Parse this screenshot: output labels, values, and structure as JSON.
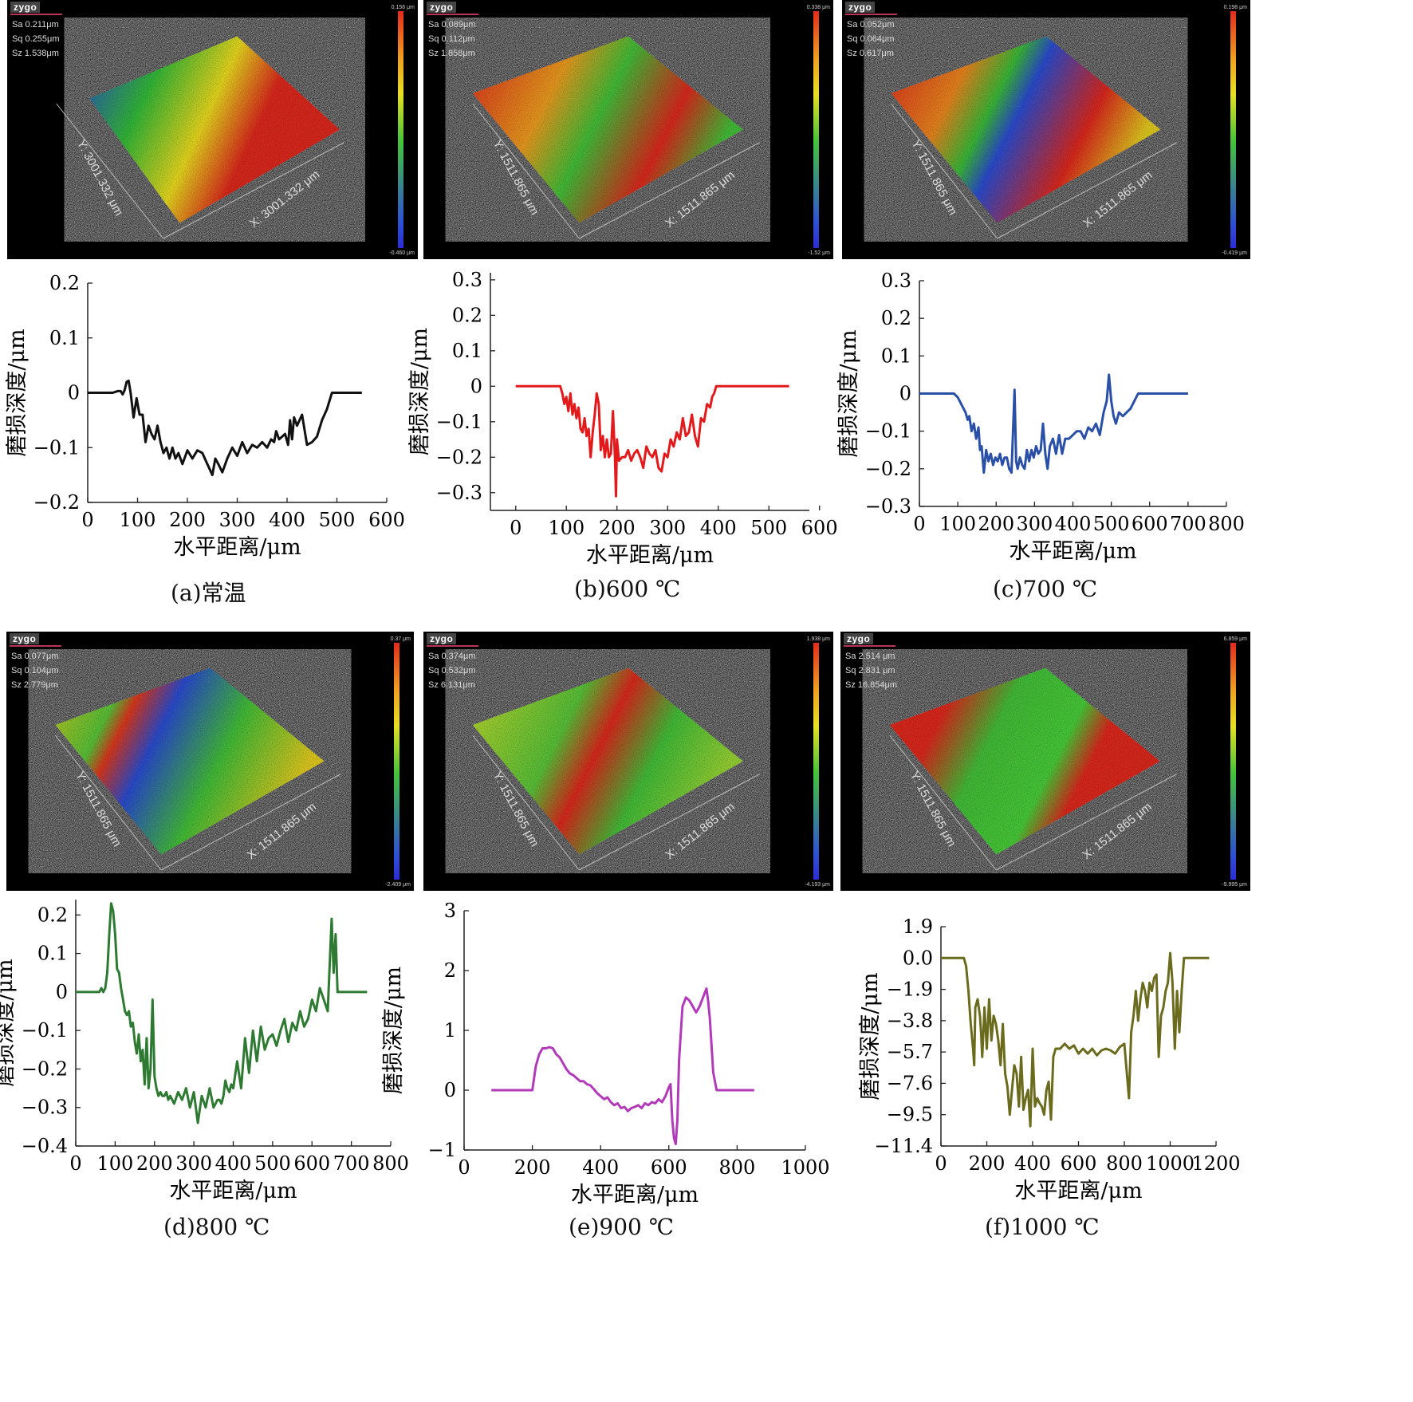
{
  "scans": [
    {
      "brand": "zygo",
      "sa": "Sa 0.211μm",
      "sq": "Sq 0.255μm",
      "sz": "Sz 1.538μm",
      "cb_max": "0.156 μm",
      "cb_min": "-0.460 μm",
      "x_label": "X: 3001.332 μm",
      "y_label": "Y: 3001.332 μm"
    },
    {
      "brand": "zygo",
      "sa": "Sa 0.089μm",
      "sq": "Sq 0.112μm",
      "sz": "Sz 1.858μm",
      "cb_max": "0.338 μm",
      "cb_min": "-1.52 μm",
      "x_label": "X: 1511.865 μm",
      "y_label": "Y: 1511.865 μm"
    },
    {
      "brand": "zygo",
      "sa": "Sa 0.052μm",
      "sq": "Sq 0.064μm",
      "sz": "Sz 0.617μm",
      "cb_max": "0.198 μm",
      "cb_min": "-0.419 μm",
      "x_label": "X: 1511.865 μm",
      "y_label": "Y: 1511.865 μm"
    },
    {
      "brand": "zygo",
      "sa": "Sa 0.077μm",
      "sq": "Sq 0.104μm",
      "sz": "Sz 2.779μm",
      "cb_max": "0.37 μm",
      "cb_min": "-2.409 μm",
      "x_label": "X: 1511.865 μm",
      "y_label": "Y: 1511.865 μm"
    },
    {
      "brand": "zygo",
      "sa": "Sa 0.374μm",
      "sq": "Sq 0.532μm",
      "sz": "Sz 6.131μm",
      "cb_max": "1.938 μm",
      "cb_min": "-4.193 μm",
      "x_label": "X: 1511.865 μm",
      "y_label": "Y: 1511.865 μm"
    },
    {
      "brand": "zygo",
      "sa": "Sa 2.514  μm",
      "sq": "Sq 2.831  μm",
      "sz": "Sz 16.854μm",
      "cb_max": "6.859 μm",
      "cb_min": "-9.995 μm",
      "x_label": "X: 1511.865 μm",
      "y_label": "Y: 1511.865 μm"
    }
  ],
  "captions": [
    "(a)常温",
    "(b)600 ℃",
    "(c)700 ℃",
    "(d)800 ℃",
    "(e)900 ℃",
    "(f)1000 ℃"
  ],
  "colors": {
    "a": "#111111",
    "b": "#e31a1c",
    "c": "#2a4fa6",
    "d": "#2e7a32",
    "e": "#b03ab8",
    "f": "#6b6b1e"
  },
  "chart_data": [
    {
      "type": "line",
      "xlabel": "水平距离/μm",
      "ylabel": "磨损深度/μm",
      "xticks": [
        0,
        100,
        200,
        300,
        400,
        500,
        600
      ],
      "yticks": [
        -0.2,
        -0.1,
        0,
        0.1,
        0.2
      ],
      "ytick_labels": [
        "−0.2",
        "−0.1",
        "0",
        "0.1",
        "0.2"
      ],
      "xlim": [
        0,
        600
      ],
      "ylim": [
        -0.2,
        0.2
      ],
      "x": [
        0,
        50,
        60,
        66,
        70,
        74,
        78,
        82,
        86,
        92,
        98,
        104,
        110,
        116,
        122,
        128,
        134,
        140,
        146,
        152,
        158,
        164,
        170,
        176,
        182,
        190,
        200,
        210,
        220,
        230,
        240,
        250,
        256,
        262,
        270,
        280,
        290,
        300,
        310,
        320,
        330,
        340,
        350,
        360,
        368,
        374,
        378,
        384,
        390,
        396,
        402,
        406,
        410,
        414,
        420,
        430,
        440,
        450,
        460,
        470,
        480,
        490,
        500,
        520,
        550
      ],
      "y": [
        0,
        0,
        0.003,
        0.003,
        -0.003,
        0.005,
        0.02,
        0.022,
        0.0,
        -0.045,
        -0.01,
        -0.04,
        -0.04,
        -0.09,
        -0.06,
        -0.075,
        -0.085,
        -0.06,
        -0.09,
        -0.11,
        -0.1,
        -0.12,
        -0.1,
        -0.12,
        -0.11,
        -0.13,
        -0.105,
        -0.12,
        -0.105,
        -0.11,
        -0.13,
        -0.15,
        -0.12,
        -0.13,
        -0.145,
        -0.12,
        -0.1,
        -0.115,
        -0.09,
        -0.11,
        -0.095,
        -0.1,
        -0.09,
        -0.1,
        -0.085,
        -0.09,
        -0.07,
        -0.085,
        -0.08,
        -0.075,
        -0.095,
        -0.05,
        -0.085,
        -0.045,
        -0.06,
        -0.04,
        -0.095,
        -0.09,
        -0.08,
        -0.05,
        -0.03,
        0,
        0,
        0,
        0
      ]
    },
    {
      "type": "line",
      "xlabel": "水平距离/μm",
      "ylabel": "磨损深度/μm",
      "xticks": [
        0,
        100,
        200,
        300,
        400,
        500,
        600
      ],
      "yticks": [
        -0.3,
        -0.2,
        -0.1,
        0,
        0.1,
        0.2,
        0.3
      ],
      "ytick_labels": [
        "−0.3",
        "−0.2",
        "−0.1",
        "0",
        "0.1",
        "0.2",
        "0.3"
      ],
      "xlim": [
        -50,
        580
      ],
      "ylim": [
        -0.35,
        0.32
      ],
      "x": [
        0,
        88,
        92,
        96,
        100,
        104,
        108,
        112,
        116,
        120,
        124,
        128,
        132,
        136,
        140,
        144,
        148,
        152,
        156,
        160,
        164,
        168,
        172,
        176,
        180,
        184,
        188,
        192,
        196,
        198,
        200,
        204,
        210,
        216,
        222,
        228,
        234,
        240,
        246,
        252,
        258,
        264,
        270,
        276,
        282,
        288,
        294,
        300,
        306,
        312,
        318,
        324,
        330,
        336,
        342,
        348,
        354,
        360,
        366,
        372,
        378,
        384,
        388,
        392,
        396,
        400,
        540
      ],
      "y": [
        0,
        0,
        -0.02,
        -0.05,
        -0.03,
        -0.07,
        -0.02,
        -0.08,
        -0.05,
        -0.09,
        -0.06,
        -0.12,
        -0.13,
        -0.09,
        -0.14,
        -0.12,
        -0.2,
        -0.13,
        -0.08,
        -0.02,
        -0.05,
        -0.18,
        -0.14,
        -0.2,
        -0.15,
        -0.2,
        -0.19,
        -0.07,
        -0.2,
        -0.31,
        -0.15,
        -0.21,
        -0.2,
        -0.2,
        -0.18,
        -0.21,
        -0.19,
        -0.18,
        -0.2,
        -0.23,
        -0.17,
        -0.19,
        -0.2,
        -0.18,
        -0.23,
        -0.24,
        -0.19,
        -0.2,
        -0.15,
        -0.17,
        -0.13,
        -0.15,
        -0.09,
        -0.14,
        -0.13,
        -0.08,
        -0.14,
        -0.17,
        -0.09,
        -0.1,
        -0.05,
        -0.06,
        -0.03,
        -0.02,
        0,
        0,
        0
      ]
    },
    {
      "type": "line",
      "xlabel": "水平距离/μm",
      "ylabel": "磨损深度/μm",
      "xticks": [
        0,
        100,
        200,
        300,
        400,
        500,
        600,
        700,
        800
      ],
      "yticks": [
        -0.3,
        -0.2,
        -0.1,
        0,
        0.1,
        0.2,
        0.3
      ],
      "ytick_labels": [
        "−0.3",
        "−0.2",
        "−0.1",
        "0",
        "0.1",
        "0.2",
        "0.3"
      ],
      "xlim": [
        0,
        800
      ],
      "ylim": [
        -0.3,
        0.3
      ],
      "x": [
        0,
        90,
        100,
        110,
        120,
        126,
        130,
        136,
        142,
        148,
        154,
        158,
        162,
        168,
        174,
        180,
        186,
        192,
        198,
        204,
        210,
        216,
        222,
        228,
        234,
        240,
        244,
        248,
        252,
        256,
        262,
        268,
        274,
        280,
        286,
        292,
        298,
        304,
        310,
        316,
        322,
        328,
        334,
        340,
        348,
        356,
        364,
        372,
        380,
        390,
        400,
        410,
        420,
        430,
        440,
        450,
        460,
        470,
        480,
        488,
        494,
        500,
        506,
        512,
        520,
        530,
        540,
        550,
        560,
        570,
        580,
        700
      ],
      "y": [
        0,
        0,
        -0.01,
        -0.03,
        -0.05,
        -0.07,
        -0.06,
        -0.1,
        -0.08,
        -0.12,
        -0.09,
        -0.15,
        -0.14,
        -0.21,
        -0.15,
        -0.18,
        -0.16,
        -0.19,
        -0.17,
        -0.18,
        -0.16,
        -0.19,
        -0.17,
        -0.17,
        -0.2,
        -0.21,
        -0.1,
        0.01,
        -0.18,
        -0.2,
        -0.17,
        -0.19,
        -0.2,
        -0.15,
        -0.18,
        -0.15,
        -0.17,
        -0.14,
        -0.16,
        -0.15,
        -0.08,
        -0.16,
        -0.2,
        -0.14,
        -0.12,
        -0.16,
        -0.11,
        -0.16,
        -0.12,
        -0.12,
        -0.11,
        -0.1,
        -0.1,
        -0.12,
        -0.09,
        -0.1,
        -0.08,
        -0.11,
        -0.05,
        -0.02,
        0.05,
        -0.02,
        -0.06,
        -0.08,
        -0.05,
        -0.06,
        -0.05,
        -0.04,
        -0.02,
        0,
        0,
        0
      ]
    },
    {
      "type": "line",
      "xlabel": "水平距离/μm",
      "ylabel": "磨损深度/μm",
      "xticks": [
        0,
        100,
        200,
        300,
        400,
        500,
        600,
        700,
        800
      ],
      "yticks": [
        -0.4,
        -0.3,
        -0.2,
        -0.1,
        0,
        0.1,
        0.2
      ],
      "ytick_labels": [
        "−0.4",
        "−0.3",
        "−0.2",
        "−0.1",
        "0",
        "0.1",
        "0.2"
      ],
      "xlim": [
        0,
        800
      ],
      "ylim": [
        -0.4,
        0.24
      ],
      "x": [
        0,
        60,
        65,
        70,
        75,
        80,
        85,
        90,
        95,
        100,
        105,
        110,
        115,
        120,
        125,
        130,
        135,
        140,
        145,
        150,
        155,
        160,
        165,
        170,
        175,
        180,
        185,
        190,
        195,
        200,
        205,
        210,
        215,
        220,
        225,
        230,
        235,
        240,
        250,
        260,
        270,
        280,
        290,
        300,
        310,
        320,
        330,
        340,
        350,
        360,
        365,
        370,
        375,
        380,
        385,
        390,
        395,
        400,
        410,
        420,
        430,
        440,
        450,
        460,
        470,
        480,
        490,
        500,
        510,
        520,
        530,
        540,
        550,
        560,
        570,
        580,
        590,
        600,
        610,
        620,
        630,
        640,
        650,
        655,
        660,
        665,
        670,
        680,
        740
      ],
      "y": [
        0,
        0,
        0.01,
        0,
        0.01,
        0.05,
        0.15,
        0.23,
        0.21,
        0.15,
        0.06,
        0.05,
        0.01,
        -0.02,
        -0.05,
        -0.06,
        -0.05,
        -0.09,
        -0.08,
        -0.13,
        -0.16,
        -0.11,
        -0.18,
        -0.15,
        -0.24,
        -0.12,
        -0.25,
        -0.2,
        -0.02,
        -0.22,
        -0.25,
        -0.27,
        -0.26,
        -0.27,
        -0.27,
        -0.26,
        -0.28,
        -0.27,
        -0.29,
        -0.26,
        -0.28,
        -0.25,
        -0.3,
        -0.26,
        -0.34,
        -0.27,
        -0.3,
        -0.25,
        -0.3,
        -0.28,
        -0.28,
        -0.29,
        -0.27,
        -0.23,
        -0.25,
        -0.26,
        -0.24,
        -0.25,
        -0.18,
        -0.25,
        -0.12,
        -0.21,
        -0.1,
        -0.18,
        -0.09,
        -0.15,
        -0.12,
        -0.11,
        -0.14,
        -0.1,
        -0.07,
        -0.13,
        -0.08,
        -0.1,
        -0.05,
        -0.09,
        -0.07,
        -0.02,
        -0.05,
        0.01,
        -0.02,
        -0.05,
        0.19,
        0.05,
        0.15,
        0,
        0,
        0,
        0
      ]
    },
    {
      "type": "line",
      "xlabel": "水平距离/μm",
      "ylabel": "磨损深度/μm",
      "xticks": [
        0,
        200,
        400,
        600,
        800,
        1000
      ],
      "yticks": [
        -1,
        0,
        1,
        2,
        3
      ],
      "ytick_labels": [
        "−1",
        "0",
        "1",
        "2",
        "3"
      ],
      "xlim": [
        0,
        1000
      ],
      "ylim": [
        -1,
        3
      ],
      "x": [
        80,
        200,
        210,
        220,
        230,
        240,
        250,
        260,
        270,
        280,
        290,
        300,
        310,
        320,
        330,
        340,
        350,
        360,
        370,
        380,
        390,
        400,
        410,
        420,
        430,
        440,
        450,
        460,
        470,
        480,
        490,
        500,
        510,
        520,
        530,
        540,
        550,
        560,
        570,
        580,
        590,
        600,
        605,
        610,
        615,
        620,
        625,
        630,
        640,
        650,
        660,
        670,
        680,
        690,
        700,
        710,
        715,
        720,
        730,
        740,
        760,
        850
      ],
      "y": [
        0,
        0,
        0.4,
        0.6,
        0.7,
        0.7,
        0.72,
        0.7,
        0.6,
        0.55,
        0.45,
        0.35,
        0.28,
        0.25,
        0.2,
        0.15,
        0.15,
        0.1,
        0.08,
        0.02,
        -0.05,
        -0.1,
        -0.15,
        -0.12,
        -0.2,
        -0.25,
        -0.22,
        -0.3,
        -0.28,
        -0.35,
        -0.3,
        -0.28,
        -0.25,
        -0.3,
        -0.22,
        -0.25,
        -0.2,
        -0.22,
        -0.15,
        -0.2,
        -0.1,
        0.05,
        0.1,
        -0.5,
        -0.8,
        -0.9,
        -0.5,
        0.5,
        1.4,
        1.55,
        1.5,
        1.4,
        1.3,
        1.4,
        1.55,
        1.7,
        1.5,
        1.2,
        0.3,
        0,
        0,
        0
      ]
    },
    {
      "type": "line",
      "xlabel": "水平距离/μm",
      "ylabel": "磨损深度/μm",
      "xticks": [
        0,
        200,
        400,
        600,
        800,
        1000,
        1200
      ],
      "yticks": [
        -11.4,
        -9.5,
        -7.6,
        -5.7,
        -3.8,
        -1.9,
        0,
        1.9
      ],
      "ytick_labels": [
        "−11.4",
        "−9.5",
        "−7.6",
        "−5.7",
        "−3.8",
        "−1.9",
        "0.0",
        "1.9"
      ],
      "xlim": [
        0,
        1200
      ],
      "ylim": [
        -11.4,
        1.9
      ],
      "x": [
        0,
        100,
        110,
        120,
        130,
        140,
        145,
        150,
        160,
        170,
        175,
        180,
        190,
        200,
        210,
        220,
        230,
        240,
        250,
        260,
        270,
        280,
        290,
        300,
        310,
        320,
        330,
        340,
        350,
        360,
        370,
        380,
        390,
        400,
        410,
        420,
        430,
        440,
        450,
        460,
        470,
        480,
        490,
        500,
        520,
        540,
        560,
        580,
        600,
        620,
        640,
        660,
        680,
        700,
        720,
        740,
        760,
        780,
        800,
        820,
        830,
        840,
        850,
        860,
        870,
        880,
        890,
        900,
        910,
        920,
        930,
        940,
        950,
        960,
        970,
        980,
        990,
        1000,
        1010,
        1020,
        1030,
        1040,
        1050,
        1060,
        1080,
        1120,
        1170
      ],
      "y": [
        0,
        0,
        -0.5,
        -2.0,
        -4.0,
        -5.5,
        -6.5,
        -3.0,
        -2.5,
        -3.5,
        -4.5,
        -6.0,
        -3.0,
        -5.5,
        -2.5,
        -5.0,
        -3.5,
        -4.0,
        -5.0,
        -6.5,
        -4.0,
        -7.0,
        -7.8,
        -9.5,
        -8.0,
        -6.5,
        -7.0,
        -9.0,
        -6.0,
        -9.2,
        -8.5,
        -8.0,
        -10.2,
        -5.5,
        -9.0,
        -8.5,
        -8.8,
        -9.0,
        -9.5,
        -8.0,
        -7.5,
        -9.8,
        -6.0,
        -5.5,
        -5.5,
        -5.2,
        -5.5,
        -5.3,
        -5.8,
        -5.5,
        -5.8,
        -5.5,
        -5.9,
        -5.6,
        -5.5,
        -5.6,
        -5.8,
        -5.4,
        -5.2,
        -8.5,
        -4.5,
        -3.5,
        -2.0,
        -3.8,
        -2.5,
        -1.5,
        -2.0,
        -3.0,
        -1.5,
        -2.0,
        -1.2,
        -1.0,
        -6.0,
        -3.5,
        -3.0,
        -2.0,
        -1.5,
        0.3,
        -1.5,
        -5.5,
        -2.0,
        -4.5,
        -2.0,
        0,
        0,
        0,
        0
      ]
    }
  ]
}
